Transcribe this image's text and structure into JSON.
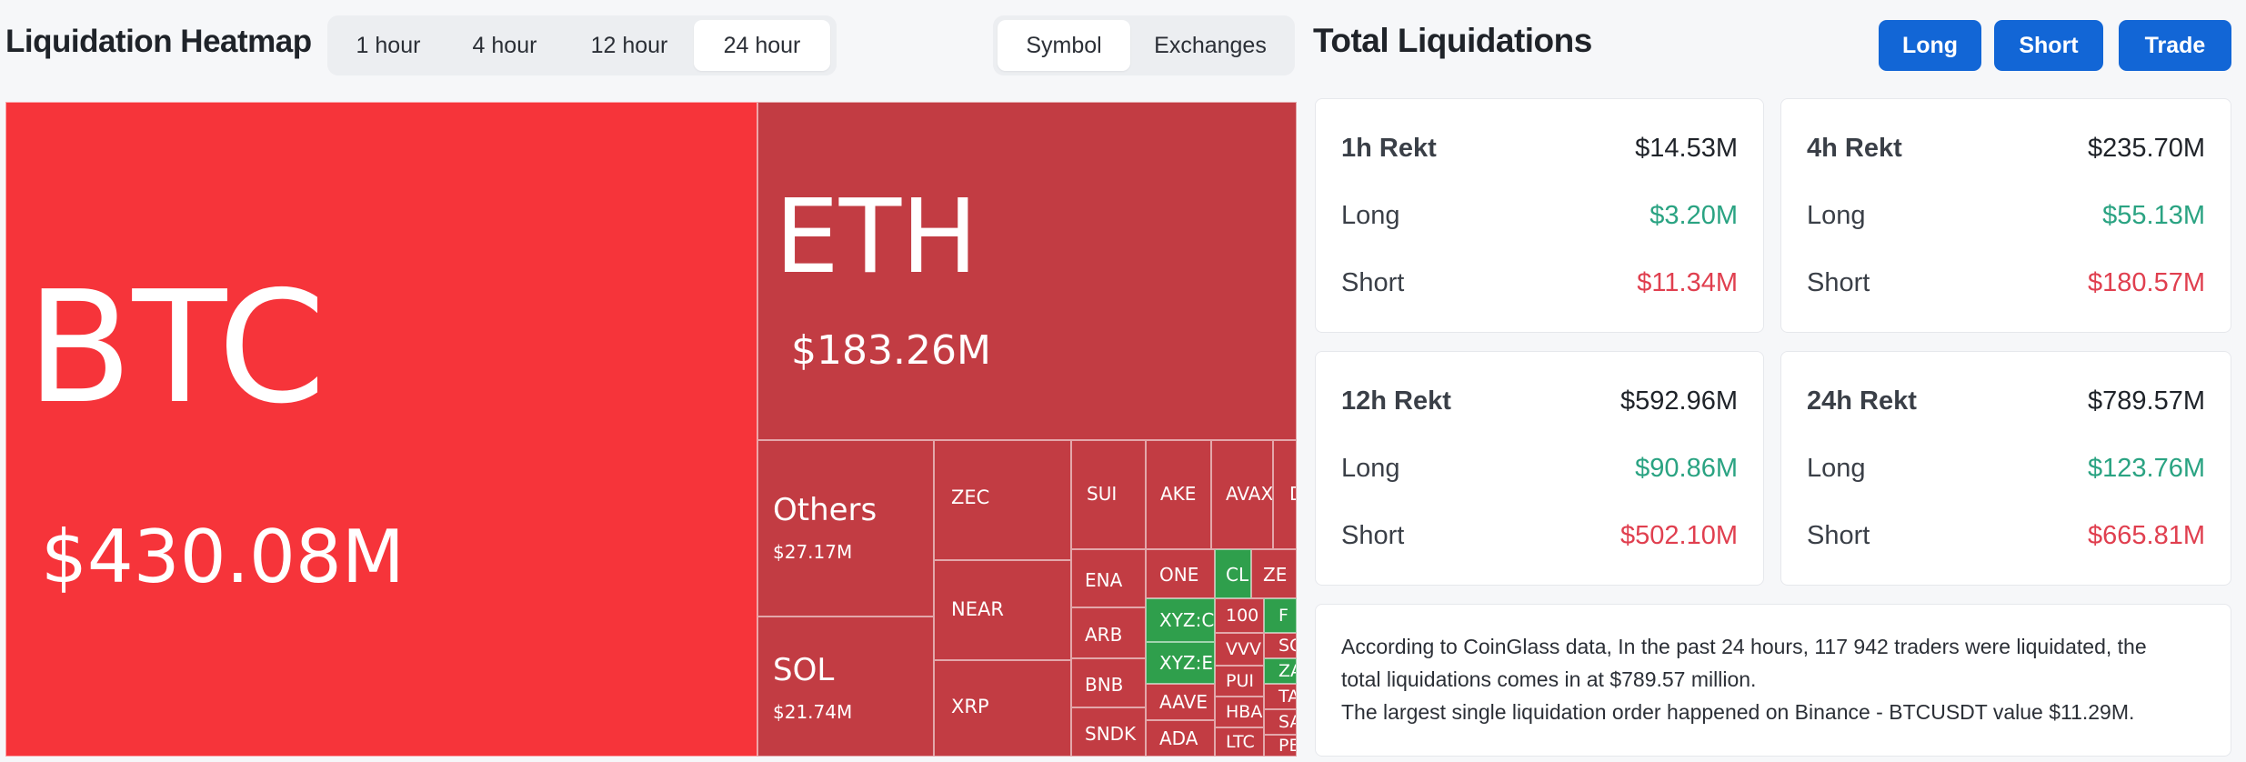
{
  "heatmap": {
    "title": "Liquidation Heatmap",
    "time_options": [
      "1 hour",
      "4 hour",
      "12 hour",
      "24 hour"
    ],
    "active_time": "24 hour",
    "view_options": [
      "Symbol",
      "Exchanges"
    ],
    "active_view": "Symbol",
    "cells": {
      "btc": {
        "symbol": "BTC",
        "value": "$430.08M"
      },
      "eth": {
        "symbol": "ETH",
        "value": "$183.26M"
      },
      "others": {
        "symbol": "Others",
        "value": "$27.17M"
      },
      "sol": {
        "symbol": "SOL",
        "value": "$21.74M"
      },
      "zec": {
        "symbol": "ZEC"
      },
      "near": {
        "symbol": "NEAR"
      },
      "xrp": {
        "symbol": "XRP"
      },
      "sui": {
        "symbol": "SUI"
      },
      "ake": {
        "symbol": "AKE"
      },
      "avax": {
        "symbol": "AVAX"
      },
      "d": {
        "symbol": "D"
      },
      "ena": {
        "symbol": "ENA"
      },
      "one": {
        "symbol": "ONE"
      },
      "cl": {
        "symbol": "CL"
      },
      "ze": {
        "symbol": "ZE"
      },
      "arb": {
        "symbol": "ARB"
      },
      "xyz1": {
        "symbol": "XYZ:C"
      },
      "n100": {
        "symbol": "100"
      },
      "f": {
        "symbol": "F"
      },
      "vvv": {
        "symbol": "VVV"
      },
      "so": {
        "symbol": "SO"
      },
      "bnb": {
        "symbol": "BNB"
      },
      "xyz2": {
        "symbol": "XYZ:E"
      },
      "pu": {
        "symbol": "PUI"
      },
      "za": {
        "symbol": "ZA"
      },
      "aave": {
        "symbol": "AAVE"
      },
      "hb": {
        "symbol": "HBA"
      },
      "ta": {
        "symbol": "TA"
      },
      "sndk": {
        "symbol": "SNDK"
      },
      "ada": {
        "symbol": "ADA"
      },
      "ltc": {
        "symbol": "LTC"
      },
      "sa": {
        "symbol": "SA"
      },
      "pe": {
        "symbol": "PE"
      }
    }
  },
  "total": {
    "title": "Total Liquidations",
    "buttons": {
      "long": "Long",
      "short": "Short",
      "trade": "Trade"
    },
    "cards": [
      {
        "head": "1h Rekt",
        "total": "$14.53M",
        "long_label": "Long",
        "long": "$3.20M",
        "short_label": "Short",
        "short": "$11.34M"
      },
      {
        "head": "4h Rekt",
        "total": "$235.70M",
        "long_label": "Long",
        "long": "$55.13M",
        "short_label": "Short",
        "short": "$180.57M"
      },
      {
        "head": "12h Rekt",
        "total": "$592.96M",
        "long_label": "Long",
        "long": "$90.86M",
        "short_label": "Short",
        "short": "$502.10M"
      },
      {
        "head": "24h Rekt",
        "total": "$789.57M",
        "long_label": "Long",
        "long": "$123.76M",
        "short_label": "Short",
        "short": "$665.81M"
      }
    ],
    "note_line1": "According to CoinGlass data, In the past 24 hours, 117 942 traders were liquidated, the",
    "note_line2": "total liquidations comes in at $789.57 million.",
    "note_line3": "The largest single liquidation order happened on Binance - BTCUSDT value $11.29M."
  }
}
